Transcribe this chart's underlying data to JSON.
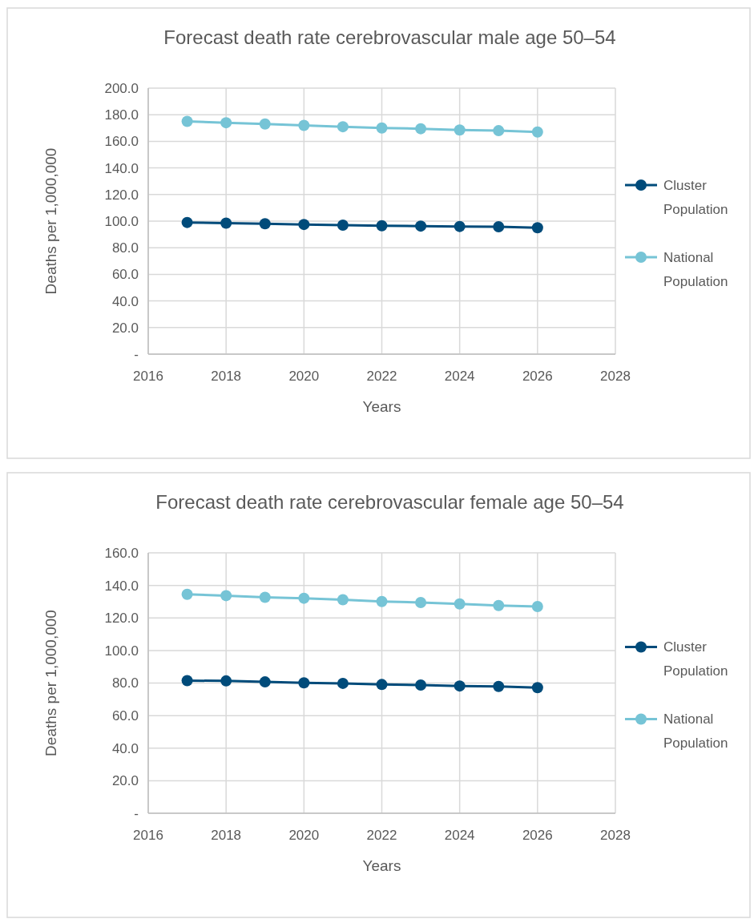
{
  "chart_data": [
    {
      "type": "line",
      "title": "Forecast death rate cerebrovascular male age 50–54",
      "xlabel": "Years",
      "ylabel": "Deaths per 1,000,000",
      "x": [
        2017,
        2018,
        2019,
        2020,
        2021,
        2022,
        2023,
        2024,
        2025,
        2026
      ],
      "series": [
        {
          "name": "Cluster Population",
          "color": "#004b7a",
          "values": [
            99,
            98.5,
            98,
            97.5,
            97,
            96.5,
            96.3,
            96,
            95.8,
            95
          ]
        },
        {
          "name": "National Population",
          "color": "#76c4d6",
          "values": [
            175,
            174,
            173,
            172,
            171,
            170,
            169.5,
            168.5,
            168,
            167
          ]
        }
      ],
      "xlim": [
        2016,
        2028
      ],
      "xticks": [
        2016,
        2018,
        2020,
        2022,
        2024,
        2026,
        2028
      ],
      "ylim": [
        0,
        200
      ],
      "yticks": [
        {
          "value": 0,
          "label": "-"
        },
        {
          "value": 20,
          "label": "20.0"
        },
        {
          "value": 40,
          "label": "40.0"
        },
        {
          "value": 60,
          "label": "60.0"
        },
        {
          "value": 80,
          "label": "80.0"
        },
        {
          "value": 100,
          "label": "100.0"
        },
        {
          "value": 120,
          "label": "120.0"
        },
        {
          "value": 140,
          "label": "140.0"
        },
        {
          "value": 160,
          "label": "160.0"
        },
        {
          "value": 180,
          "label": "180.0"
        },
        {
          "value": 200,
          "label": "200.0"
        }
      ],
      "grid": true,
      "legend": "right",
      "marker": "circle"
    },
    {
      "type": "line",
      "title": "Forecast death rate cerebrovascular female age 50–54",
      "xlabel": "Years",
      "ylabel": "Deaths per 1,000,000",
      "x": [
        2017,
        2018,
        2019,
        2020,
        2021,
        2022,
        2023,
        2024,
        2025,
        2026
      ],
      "series": [
        {
          "name": "Cluster Population",
          "color": "#004b7a",
          "values": [
            81.5,
            81.3,
            80.7,
            80.1,
            79.8,
            79.1,
            78.8,
            78.2,
            77.9,
            77.2
          ]
        },
        {
          "name": "National Population",
          "color": "#76c4d6",
          "values": [
            134.5,
            133.7,
            132.7,
            132.1,
            131.2,
            130.1,
            129.5,
            128.6,
            127.6,
            127
          ]
        }
      ],
      "xlim": [
        2016,
        2028
      ],
      "xticks": [
        2016,
        2018,
        2020,
        2022,
        2024,
        2026,
        2028
      ],
      "ylim": [
        0,
        160
      ],
      "yticks": [
        {
          "value": 0,
          "label": "-"
        },
        {
          "value": 20,
          "label": "20.0"
        },
        {
          "value": 40,
          "label": "40.0"
        },
        {
          "value": 60,
          "label": "60.0"
        },
        {
          "value": 80,
          "label": "80.0"
        },
        {
          "value": 100,
          "label": "100.0"
        },
        {
          "value": 120,
          "label": "120.0"
        },
        {
          "value": 140,
          "label": "140.0"
        },
        {
          "value": 160,
          "label": "160.0"
        }
      ],
      "grid": true,
      "legend": "right",
      "marker": "circle"
    }
  ]
}
